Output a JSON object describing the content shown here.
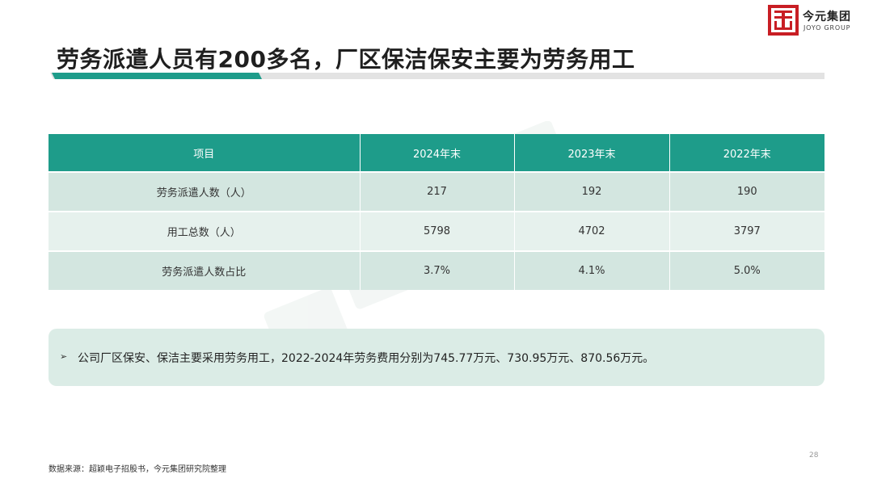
{
  "logo": {
    "name_cn": "今元集团",
    "name_en": "JOYO GROUP"
  },
  "title": "劳务派遣人员有200多名，厂区保洁保安主要为劳务用工",
  "table": {
    "headers": [
      "项目",
      "2024年末",
      "2023年末",
      "2022年末"
    ],
    "rows": [
      [
        "劳务派遣人数（人）",
        "217",
        "192",
        "190"
      ],
      [
        "用工总数（人）",
        "5798",
        "4702",
        "3797"
      ],
      [
        "劳务派遣人数占比",
        "3.7%",
        "4.1%",
        "5.0%"
      ]
    ]
  },
  "note": {
    "bullet": "➢",
    "text": "公司厂区保安、保洁主要采用劳务用工，2022-2024年劳务费用分别为745.77万元、730.95万元、870.56万元。"
  },
  "source": "数据来源：超颖电子招股书，今元集团研究院整理",
  "page_number": "28",
  "colors": {
    "accent": "#1e9c8a",
    "logo_red": "#c81e24",
    "row_dark": "#d3e6e0",
    "row_light": "#e6f1ed",
    "note_bg": "#dbece6"
  }
}
